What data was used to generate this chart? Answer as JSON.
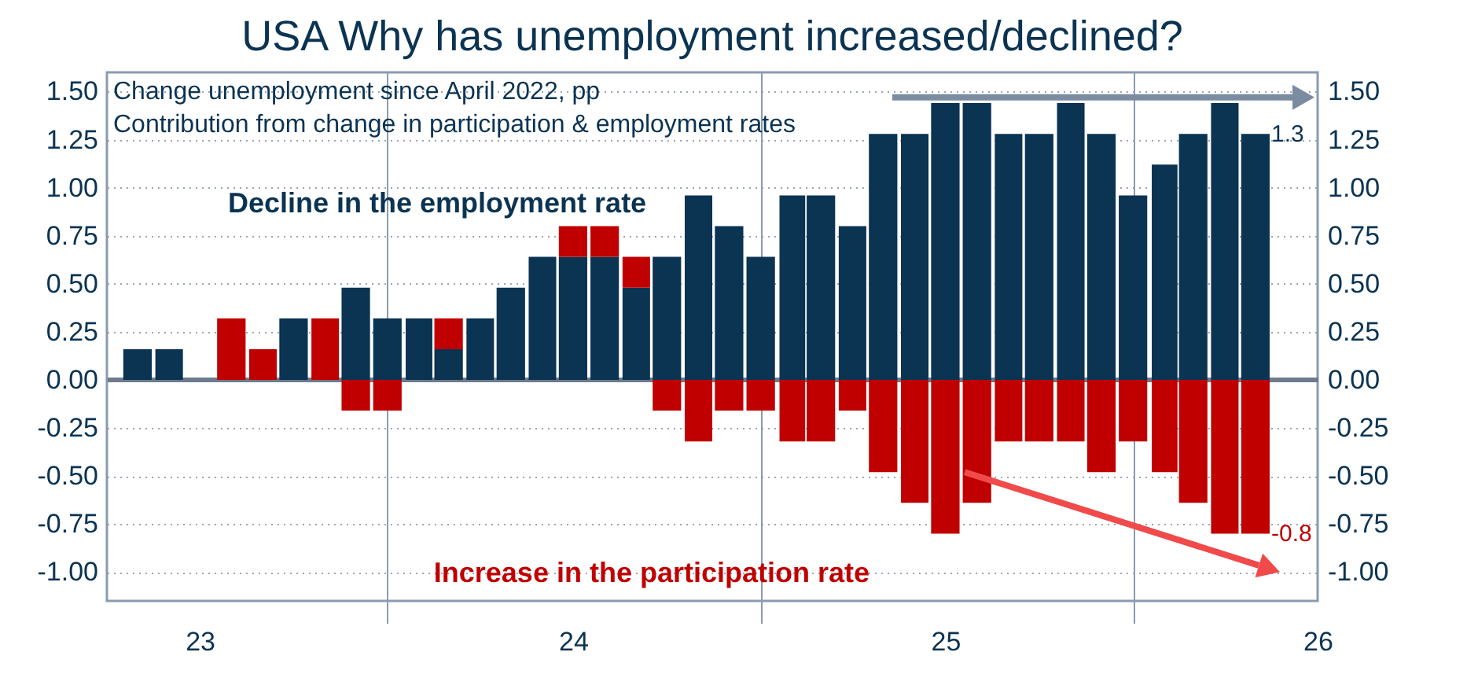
{
  "chart_data": {
    "type": "bar",
    "title": "USA Why has unemployment increased/declined?",
    "annotations": [
      "Change unemployment since April 2022, pp",
      "Contribution from change in participation & employment rates",
      {
        "text": "1.3",
        "x": "2026-05",
        "y": 1.28
      },
      {
        "text": "-0.8",
        "x": "2026-05",
        "y": -0.8
      }
    ],
    "x": [
      "2023-05",
      "2023-06",
      "2023-07",
      "2023-08",
      "2023-09",
      "2023-10",
      "2023-11",
      "2023-12",
      "2024-01",
      "2024-02",
      "2024-03",
      "2024-04",
      "2024-05",
      "2024-06",
      "2024-07",
      "2024-08",
      "2024-09",
      "2024-10",
      "2024-11",
      "2024-12",
      "2025-01",
      "2025-02",
      "2025-03",
      "2025-04",
      "2025-05",
      "2025-06",
      "2025-07",
      "2025-08",
      "2025-09",
      "2025-10",
      "2025-11",
      "2025-12",
      "2026-01",
      "2026-02",
      "2026-03",
      "2026-04",
      "2026-05"
    ],
    "series": [
      {
        "name": "Decline in the employment rate",
        "color": "#0b3352",
        "values": [
          0.16,
          0.16,
          0,
          0,
          0,
          0.32,
          0,
          0.48,
          0.32,
          0.32,
          0.16,
          0.32,
          0.48,
          0.64,
          0.64,
          0.64,
          0.48,
          0.64,
          0.96,
          0.8,
          0.64,
          0.96,
          0.96,
          0.8,
          1.28,
          1.28,
          1.44,
          1.44,
          1.28,
          1.28,
          1.44,
          1.28,
          0.96,
          1.12,
          1.28,
          1.44,
          1.28
        ]
      },
      {
        "name": "Increase in the participation rate",
        "color": "#c00000",
        "values": [
          0,
          0,
          0,
          0.32,
          0.16,
          0,
          0.32,
          -0.16,
          -0.16,
          0,
          0.16,
          0,
          0,
          0,
          0.16,
          0.16,
          0.16,
          -0.16,
          -0.32,
          -0.16,
          -0.16,
          -0.32,
          -0.32,
          -0.16,
          -0.48,
          -0.64,
          -0.8,
          -0.64,
          -0.32,
          -0.32,
          -0.32,
          -0.48,
          -0.32,
          -0.48,
          -0.64,
          -0.8,
          -0.8
        ]
      }
    ],
    "stacked": true,
    "xlim": [
      "2023-04",
      "2026-07"
    ],
    "xticks": [
      {
        "value": "2023-07",
        "label": "23"
      },
      {
        "value": "2024-01",
        "label": null
      },
      {
        "value": "2024-07",
        "label": "24"
      },
      {
        "value": "2025-01",
        "label": null
      },
      {
        "value": "2025-07",
        "label": "25"
      },
      {
        "value": "2026-01",
        "label": null
      },
      {
        "value": "2026-07",
        "label": "26"
      }
    ],
    "ylim": [
      -1.15,
      1.6
    ],
    "yticks": [
      {
        "value": -1,
        "label": "-1.00"
      },
      {
        "value": -0.75,
        "label": "-0.75"
      },
      {
        "value": -0.5,
        "label": "-0.50"
      },
      {
        "value": -0.25,
        "label": "-0.25"
      },
      {
        "value": 0,
        "label": "0.00"
      },
      {
        "value": 0.25,
        "label": "0.25"
      },
      {
        "value": 0.5,
        "label": "0.50"
      },
      {
        "value": 0.75,
        "label": "0.75"
      },
      {
        "value": 1,
        "label": "1.00"
      },
      {
        "value": 1.25,
        "label": "1.25"
      },
      {
        "value": 1.5,
        "label": "1.50"
      }
    ],
    "y2lim": [
      -1.15,
      1.6
    ],
    "y2ticks": [
      {
        "value": -1,
        "label": "-1.00"
      },
      {
        "value": -0.75,
        "label": "-0.75"
      },
      {
        "value": -0.5,
        "label": "-0.50"
      },
      {
        "value": -0.25,
        "label": "-0.25"
      },
      {
        "value": 0,
        "label": "0.00"
      },
      {
        "value": 0.25,
        "label": "0.25"
      },
      {
        "value": 0.5,
        "label": "0.50"
      },
      {
        "value": 0.75,
        "label": "0.75"
      },
      {
        "value": 1,
        "label": "1.00"
      },
      {
        "value": 1.25,
        "label": "1.25"
      },
      {
        "value": 1.5,
        "label": "1.50"
      }
    ],
    "grid": true,
    "legend": false
  }
}
